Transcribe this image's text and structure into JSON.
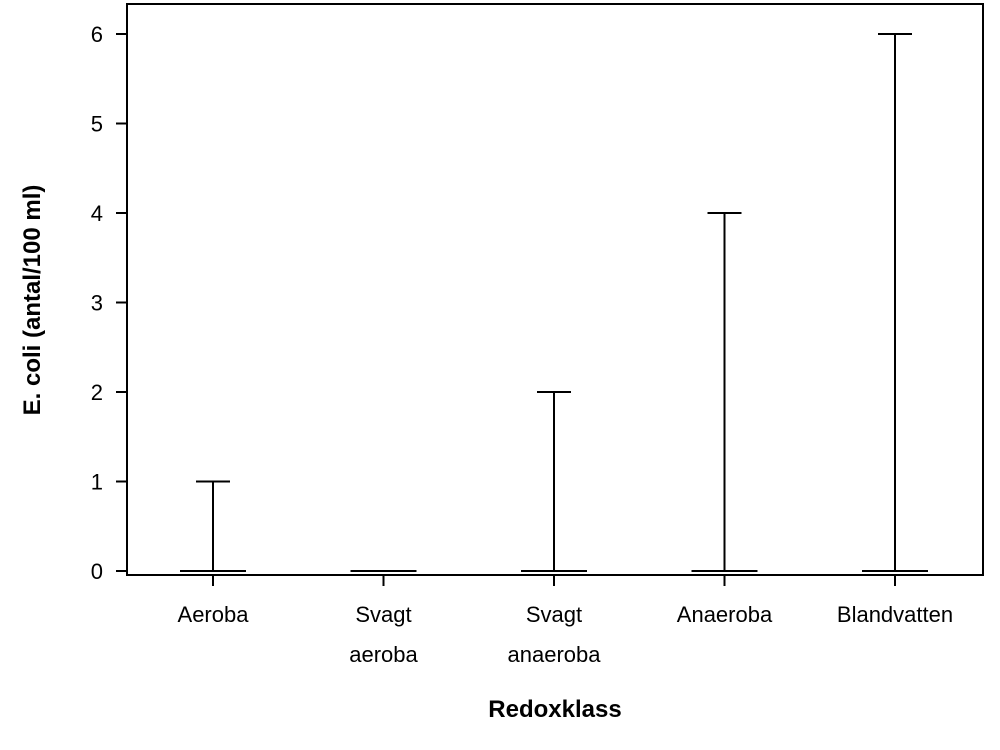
{
  "chart_data": {
    "type": "box",
    "title": "",
    "xlabel": "Redoxklass",
    "ylabel": "E. coli (antal/100 ml)",
    "ylim": [
      0,
      6
    ],
    "yticks": [
      "0",
      "1",
      "2",
      "3",
      "4",
      "5",
      "6"
    ],
    "categories": [
      [
        "Aeroba"
      ],
      [
        "Svagt",
        "aeroba"
      ],
      [
        "Svagt",
        "anaeroba"
      ],
      [
        "Anaeroba"
      ],
      [
        "Blandvatten"
      ]
    ],
    "series": [
      {
        "values": [
          {
            "min": 0,
            "q1": 0,
            "median": 0,
            "q3": 0,
            "max": 1
          },
          {
            "min": 0,
            "q1": 0,
            "median": 0,
            "q3": 0,
            "max": 0
          },
          {
            "min": 0,
            "q1": 0,
            "median": 0,
            "q3": 0,
            "max": 2
          },
          {
            "min": 0,
            "q1": 0,
            "median": 0,
            "q3": 0,
            "max": 4
          },
          {
            "min": 0,
            "q1": 0,
            "median": 0,
            "q3": 0,
            "max": 6
          }
        ]
      }
    ],
    "grid": false,
    "legend": "none"
  }
}
